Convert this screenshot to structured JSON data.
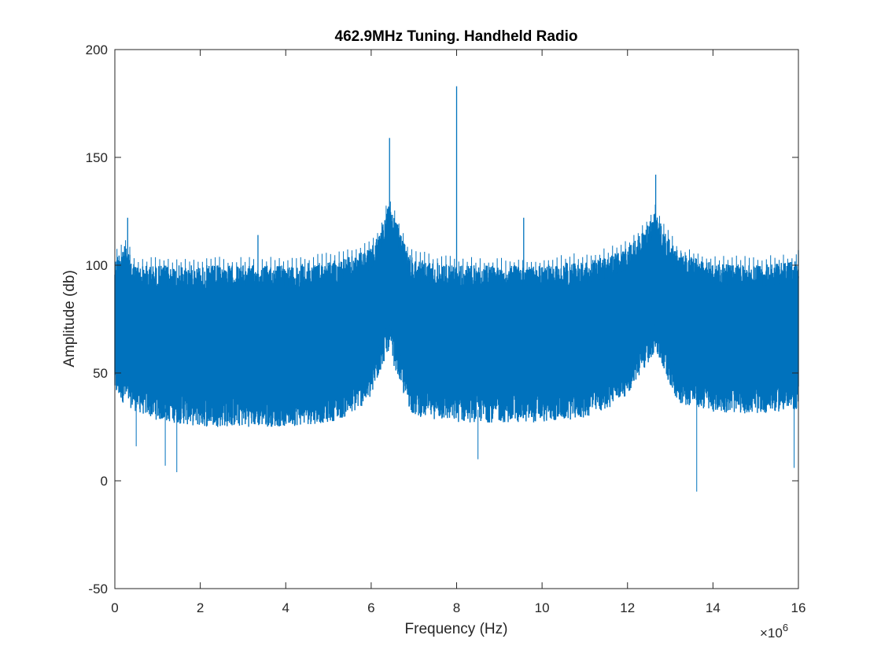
{
  "chart_data": {
    "type": "line",
    "title": "462.9MHz Tuning. Handheld Radio",
    "xlabel": "Frequency (Hz)",
    "ylabel": "Amplitude (db)",
    "xlim": [
      0,
      16
    ],
    "ylim": [
      -50,
      200
    ],
    "x_exponent_base": "×10",
    "x_exponent_power": "6",
    "xticks": [
      0,
      2,
      4,
      6,
      8,
      10,
      12,
      14,
      16
    ],
    "xtick_labels": [
      "0",
      "2",
      "4",
      "6",
      "8",
      "10",
      "12",
      "14",
      "16"
    ],
    "yticks": [
      -50,
      0,
      50,
      100,
      150,
      200
    ],
    "ytick_labels": [
      "-50",
      "0",
      "50",
      "100",
      "150",
      "200"
    ],
    "grid": false,
    "line_color": "#0072BD",
    "envelope": {
      "x": [
        0,
        0.2,
        0.5,
        1,
        2,
        3,
        4,
        5,
        5.5,
        6,
        6.2,
        6.4,
        6.6,
        6.8,
        7,
        8,
        9,
        10,
        11,
        11.5,
        12,
        12.4,
        12.65,
        12.9,
        13.2,
        14,
        15,
        16
      ],
      "upper": [
        103,
        110,
        100,
        100,
        100,
        100,
        100,
        102,
        104,
        108,
        115,
        128,
        120,
        109,
        103,
        100,
        100,
        100,
        102,
        104,
        108,
        116,
        125,
        114,
        106,
        101,
        100,
        102
      ],
      "lower": [
        40,
        36,
        32,
        28,
        25,
        25,
        25,
        27,
        30,
        38,
        50,
        60,
        50,
        37,
        30,
        27,
        27,
        27,
        29,
        33,
        40,
        52,
        60,
        48,
        36,
        32,
        31,
        33
      ]
    },
    "peaks": [
      {
        "x": 8.0,
        "y": 183
      },
      {
        "x": 6.43,
        "y": 159
      },
      {
        "x": 12.66,
        "y": 142
      },
      {
        "x": 0.3,
        "y": 122
      },
      {
        "x": 9.57,
        "y": 122
      },
      {
        "x": 3.35,
        "y": 114
      },
      {
        "x": 16.0,
        "y": 107
      }
    ],
    "dips": [
      {
        "x": 13.62,
        "y": -5
      },
      {
        "x": 1.45,
        "y": 4
      },
      {
        "x": 1.18,
        "y": 7
      },
      {
        "x": 15.9,
        "y": 6
      },
      {
        "x": 8.5,
        "y": 10
      },
      {
        "x": 0.5,
        "y": 16
      }
    ]
  }
}
